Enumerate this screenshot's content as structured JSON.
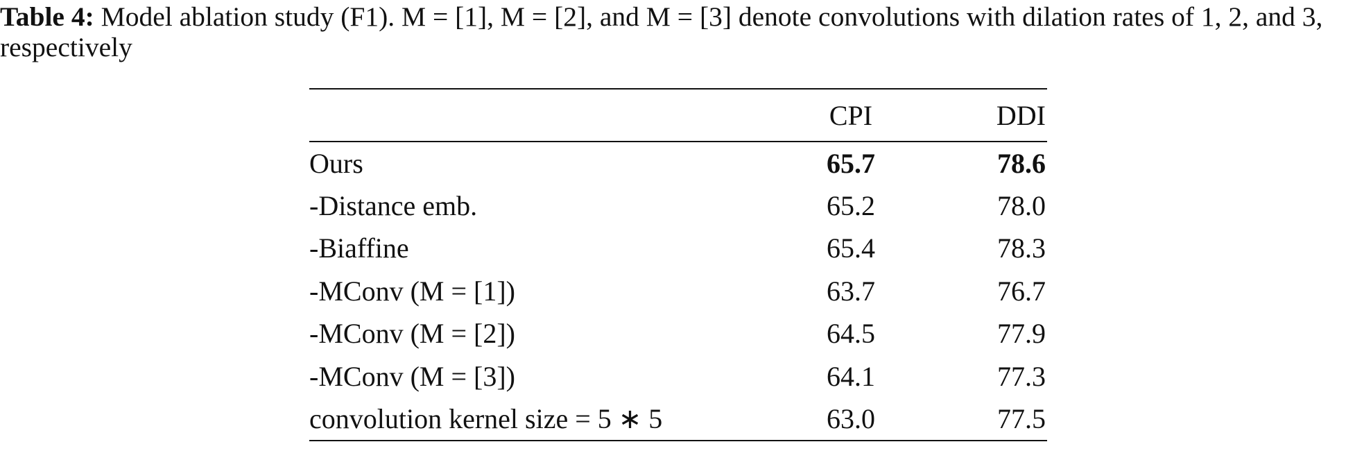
{
  "caption": {
    "label": "Table 4:",
    "text": "Model ablation study (F1). M = [1], M = [2], and M = [3] denote convolutions with dilation rates of 1, 2, and 3, respectively"
  },
  "table": {
    "header": [
      "",
      "CPI",
      "DDI"
    ],
    "rows": [
      [
        "Ours",
        "65.7",
        "78.6"
      ],
      [
        "-Distance emb.",
        "65.2",
        "78.0"
      ],
      [
        "-Biaffine",
        "65.4",
        "78.3"
      ],
      [
        "-MConv (M = [1])",
        "63.7",
        "76.7"
      ],
      [
        "-MConv (M = [2])",
        "64.5",
        "77.9"
      ],
      [
        "-MConv (M = [3])",
        "64.1",
        "77.3"
      ],
      [
        "convolution kernel size = 5 ∗ 5",
        "63.0",
        "77.5"
      ]
    ]
  }
}
